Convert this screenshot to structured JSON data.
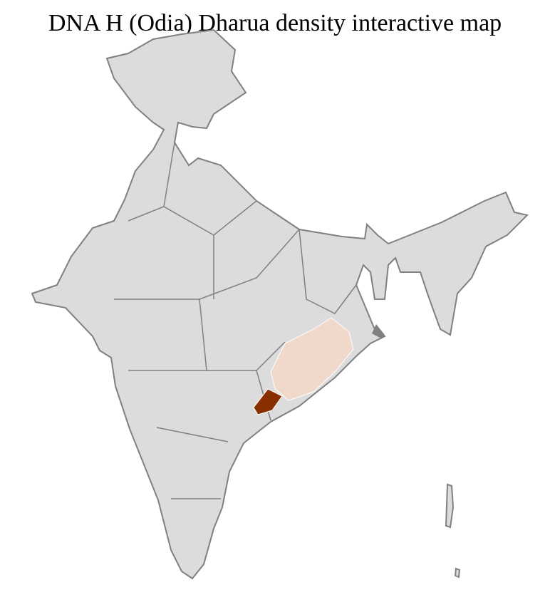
{
  "title": "DNA H (Odia) Dharua density interactive map",
  "colors": {
    "base_fill": "#dcdcdc",
    "district_border": "#ffffff",
    "state_border": "#808080",
    "low_density": "#f0d8ca",
    "high_density": "#8a3000"
  },
  "highlighted_regions": [
    {
      "level": "low"
    },
    {
      "level": "high"
    }
  ]
}
